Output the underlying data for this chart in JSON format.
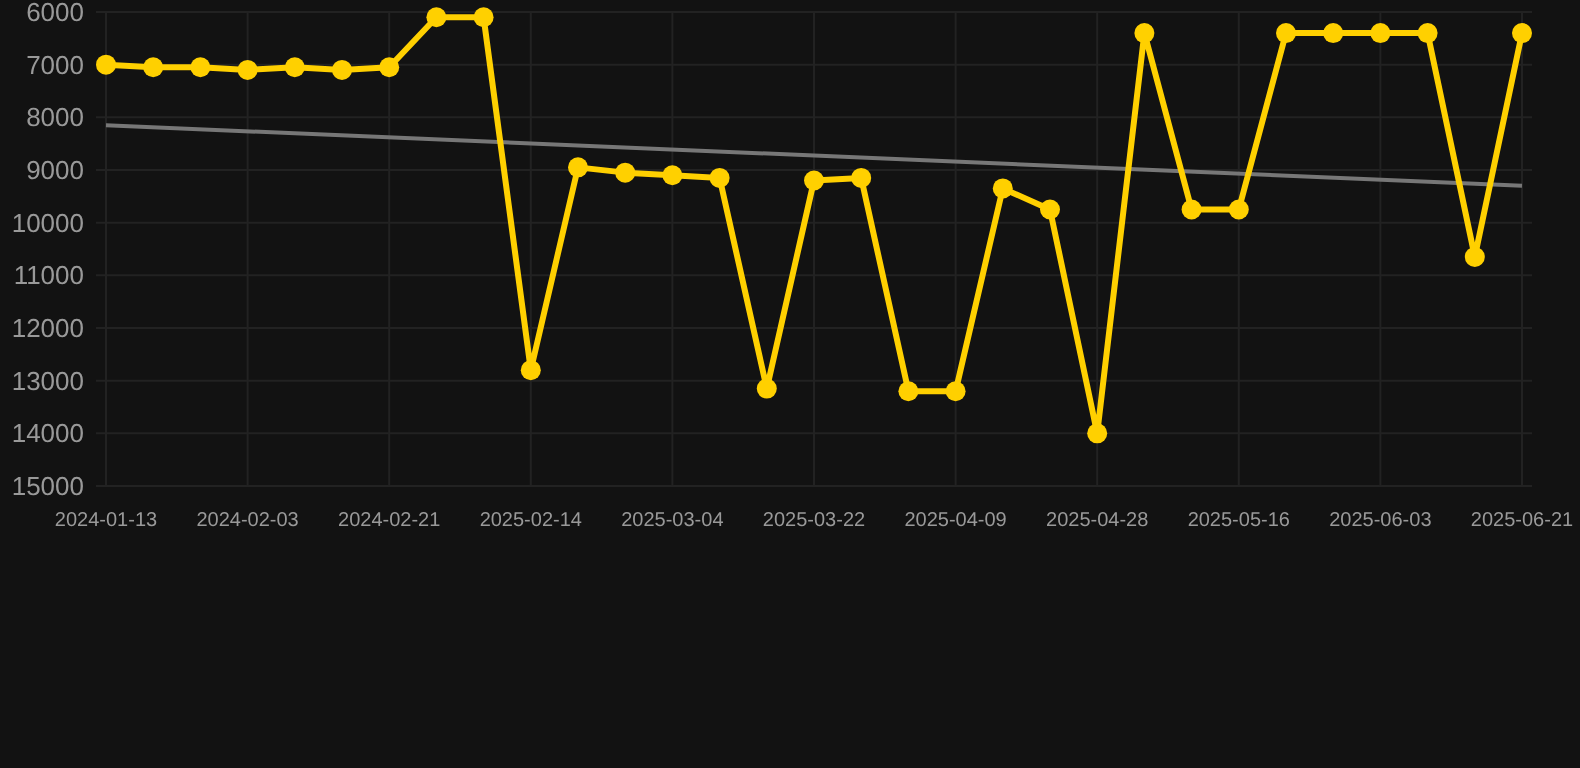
{
  "chart_data": {
    "type": "line",
    "categories": [
      "2024-01-13",
      null,
      null,
      "2024-02-03",
      null,
      null,
      "2024-02-21",
      null,
      null,
      "2025-02-14",
      null,
      null,
      "2025-03-04",
      null,
      null,
      "2025-03-22",
      null,
      null,
      "2025-04-09",
      null,
      null,
      "2025-04-28",
      null,
      null,
      "2025-05-16",
      null,
      null,
      "2025-06-03",
      null,
      null,
      "2025-06-21"
    ],
    "series": [
      {
        "color": "#ffd000",
        "marker": "circle",
        "values": [
          7000,
          7050,
          7050,
          7100,
          7050,
          7100,
          7050,
          6100,
          6100,
          12800,
          8950,
          9050,
          9100,
          9150,
          13150,
          9200,
          9150,
          13200,
          13200,
          9350,
          9750,
          14000,
          6400,
          9750,
          9750,
          6400,
          6400,
          6400,
          6400,
          10650,
          6400
        ]
      },
      {
        "color": "#777777",
        "marker": "none",
        "values": [
          8150,
          null,
          null,
          null,
          null,
          null,
          null,
          null,
          null,
          null,
          null,
          null,
          null,
          null,
          null,
          null,
          null,
          null,
          null,
          null,
          null,
          null,
          null,
          null,
          null,
          null,
          null,
          null,
          null,
          null,
          9300
        ]
      }
    ],
    "ylim": [
      15000,
      6000
    ],
    "yticks": [
      6000,
      7000,
      8000,
      9000,
      10000,
      11000,
      12000,
      13000,
      14000,
      15000
    ],
    "grid": true
  }
}
